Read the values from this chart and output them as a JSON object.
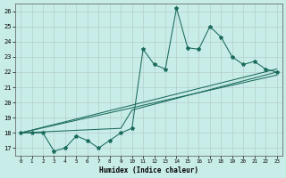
{
  "xlabel": "Humidex (Indice chaleur)",
  "bg_color": "#c8ece8",
  "line_color": "#1a6b5a",
  "xlim": [
    -0.5,
    23.5
  ],
  "ylim": [
    16.5,
    26.5
  ],
  "xticks": [
    0,
    1,
    2,
    3,
    4,
    5,
    6,
    7,
    8,
    9,
    10,
    11,
    12,
    13,
    14,
    15,
    16,
    17,
    18,
    19,
    20,
    21,
    22,
    23
  ],
  "yticks": [
    17,
    18,
    19,
    20,
    21,
    22,
    23,
    24,
    25,
    26
  ],
  "jagged_x": [
    0,
    1,
    2,
    3,
    4,
    5,
    6,
    7,
    8,
    9,
    10,
    11,
    12,
    13,
    14,
    15,
    16,
    17,
    18,
    19,
    20,
    21,
    22,
    23
  ],
  "jagged_y": [
    18.0,
    18.0,
    18.0,
    16.8,
    17.0,
    17.8,
    17.5,
    17.0,
    17.5,
    18.0,
    18.3,
    23.5,
    22.5,
    22.2,
    26.2,
    23.6,
    23.5,
    25.0,
    24.3,
    23.0,
    22.5,
    22.7,
    22.2,
    22.0
  ],
  "upper_line_x": [
    0,
    23
  ],
  "upper_line_y": [
    18.0,
    22.2
  ],
  "lower_line_x": [
    0,
    23
  ],
  "lower_line_y": [
    18.0,
    21.8
  ],
  "mid_line_x": [
    0,
    9,
    10,
    23
  ],
  "mid_line_y": [
    18.0,
    18.3,
    19.5,
    22.0
  ]
}
